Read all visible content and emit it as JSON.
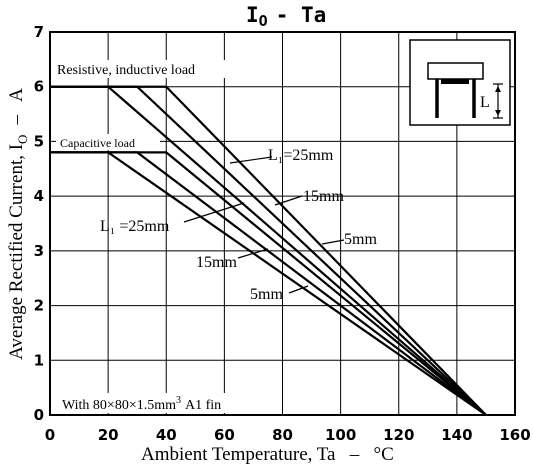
{
  "chart_data": {
    "type": "line",
    "title": "I",
    "title_sub": "O",
    "title_rest": "- Ta",
    "xlabel": "Ambient Temperature, Ta   –   °C",
    "ylabel": "Average Rectified Current, I",
    "ylabel_sub": "O",
    "ylabel_rest": "–   A",
    "xlim": [
      0,
      160
    ],
    "ylim": [
      0,
      7
    ],
    "x_ticks": [
      "0",
      "20",
      "40",
      "60",
      "80",
      "100",
      "120",
      "140",
      "160"
    ],
    "y_ticks": [
      "0",
      "1",
      "2",
      "3",
      "4",
      "5",
      "6",
      "7"
    ],
    "grid": true,
    "annotations": {
      "resistive": "Resistive, inductive load",
      "capacitive": "Capacitive load",
      "fin_note": "With 80×80×1.5mm",
      "fin_sup": "3",
      "fin_rest": "A1 fin",
      "res_25": "L₁=25mm",
      "res_15": "15mm",
      "res_5": "5mm",
      "cap_25": "L₁ =25mm",
      "cap_15": "15mm",
      "cap_5": "5mm",
      "inset_label": "L"
    },
    "series": [
      {
        "name": "Resistive, L=25mm",
        "x": [
          0,
          20,
          150
        ],
        "y": [
          6.0,
          6.0,
          0
        ]
      },
      {
        "name": "Resistive, L=15mm",
        "x": [
          0,
          30,
          150
        ],
        "y": [
          6.0,
          6.0,
          0
        ]
      },
      {
        "name": "Resistive, L=5mm",
        "x": [
          0,
          40,
          150
        ],
        "y": [
          6.0,
          6.0,
          0
        ]
      },
      {
        "name": "Capacitive, L=25mm",
        "x": [
          0,
          20,
          150
        ],
        "y": [
          4.8,
          4.8,
          0
        ]
      },
      {
        "name": "Capacitive, L=15mm",
        "x": [
          0,
          30,
          150
        ],
        "y": [
          4.8,
          4.8,
          0
        ]
      },
      {
        "name": "Capacitive, L=5mm",
        "x": [
          0,
          40,
          150
        ],
        "y": [
          4.8,
          4.8,
          0
        ]
      }
    ]
  }
}
